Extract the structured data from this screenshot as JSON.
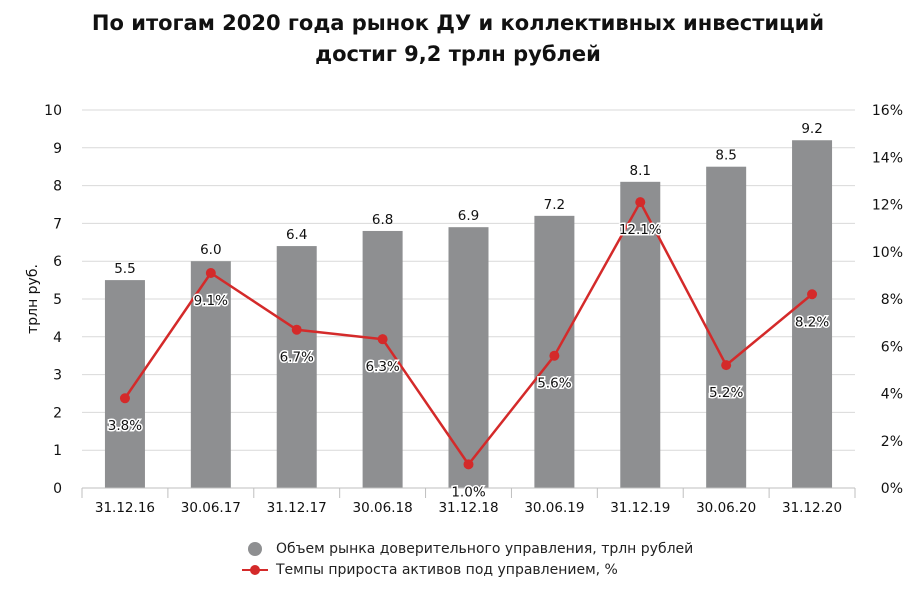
{
  "title_lines": [
    "По итогам 2020 года рынок ДУ и коллективных инвестиций",
    "достиг 9,2 трлн рублей"
  ],
  "colors": {
    "bar": "#8e8f91",
    "line": "#d42a2a",
    "grid": "#d9d9d9",
    "axis": "#bfbfbf"
  },
  "legend": {
    "bar_label": "Объем рынка доверительного управления, трлн рублей",
    "line_label": "Темпы прироста активов под управлением, %"
  },
  "chart_data": {
    "type": "bar",
    "categories": [
      "31.12.16",
      "30.06.17",
      "31.12.17",
      "30.06.18",
      "31.12.18",
      "30.06.19",
      "31.12.19",
      "30.06.20",
      "31.12.20"
    ],
    "ylabel": "трлн руб.",
    "ylim": [
      0,
      10
    ],
    "yticks": [
      "0",
      "1",
      "2",
      "3",
      "4",
      "5",
      "6",
      "7",
      "8",
      "9",
      "10"
    ],
    "y2lim": [
      0,
      16
    ],
    "y2ticks": [
      "0%",
      "2%",
      "4%",
      "6%",
      "8%",
      "10%",
      "12%",
      "14%",
      "16%"
    ],
    "grid": true,
    "legend_position": "bottom",
    "series": [
      {
        "name": "Объем рынка доверительного управления, трлн рублей",
        "type": "bar",
        "axis": "left",
        "values": [
          5.5,
          6.0,
          6.4,
          6.8,
          6.9,
          7.2,
          8.1,
          8.5,
          9.2
        ],
        "labels": [
          "5.5",
          "6.0",
          "6.4",
          "6.8",
          "6.9",
          "7.2",
          "8.1",
          "8.5",
          "9.2"
        ]
      },
      {
        "name": "Темпы прироста активов под управлением, %",
        "type": "line",
        "axis": "right",
        "values": [
          3.8,
          9.1,
          6.7,
          6.3,
          1.0,
          5.6,
          12.1,
          5.2,
          8.2
        ],
        "labels": [
          "3.8%",
          "9.1%",
          "6.7%",
          "6.3%",
          "1.0%",
          "5.6%",
          "12.1%",
          "5.2%",
          "8.2%"
        ]
      }
    ]
  }
}
